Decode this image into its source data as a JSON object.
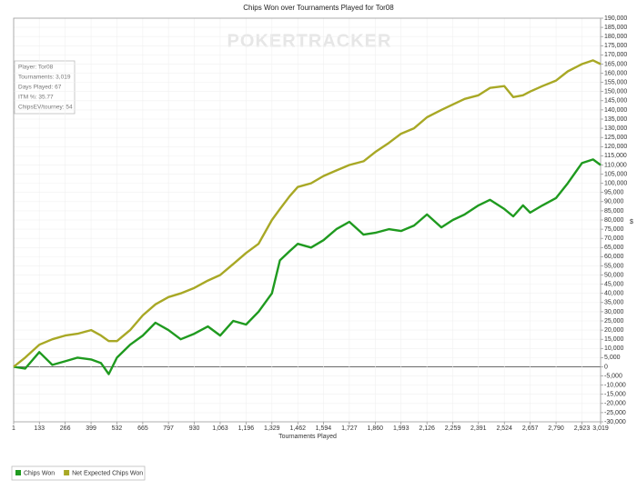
{
  "chart_data": {
    "type": "line",
    "title": "Chips Won over Tournaments Played for Tor08",
    "watermark": "POKERTRACKER",
    "x_label": "Tournaments Played",
    "y_label": "$",
    "annotations": [
      "Player: Tor08",
      "Tournaments: 3,019",
      "Days Played: 67",
      "ITM %: 35.77",
      "ChipsEV/tourney: 54"
    ],
    "x": [
      1,
      60,
      133,
      200,
      266,
      330,
      399,
      450,
      490,
      532,
      600,
      665,
      730,
      797,
      860,
      930,
      1000,
      1063,
      1130,
      1196,
      1260,
      1329,
      1370,
      1420,
      1462,
      1530,
      1594,
      1660,
      1727,
      1800,
      1860,
      1930,
      1993,
      2060,
      2126,
      2200,
      2259,
      2320,
      2391,
      2450,
      2524,
      2570,
      2620,
      2657,
      2720,
      2790,
      2850,
      2923,
      2980,
      3019
    ],
    "series": [
      {
        "name": "Chips Won",
        "color": "#1f9a1f",
        "values": [
          0,
          -1000,
          8000,
          1000,
          3000,
          5000,
          4000,
          2000,
          -4000,
          5000,
          12000,
          17000,
          24000,
          20000,
          15000,
          18000,
          22000,
          17000,
          25000,
          23000,
          30000,
          40000,
          58000,
          63000,
          67000,
          65000,
          69000,
          75000,
          79000,
          72000,
          73000,
          75000,
          74000,
          77000,
          83000,
          76000,
          80000,
          83000,
          88000,
          91000,
          86000,
          82000,
          88000,
          84000,
          88000,
          92000,
          100000,
          111000,
          113000,
          110000
        ]
      },
      {
        "name": "Net Expected Chips Won",
        "color": "#a8a825",
        "values": [
          0,
          5000,
          12000,
          15000,
          17000,
          18000,
          20000,
          17000,
          14000,
          14000,
          20000,
          28000,
          34000,
          38000,
          40000,
          43000,
          47000,
          50000,
          56000,
          62000,
          67000,
          80000,
          86000,
          93000,
          98000,
          100000,
          104000,
          107000,
          110000,
          112000,
          117000,
          122000,
          127000,
          130000,
          136000,
          140000,
          143000,
          146000,
          148000,
          152000,
          153000,
          147000,
          148000,
          150000,
          153000,
          156000,
          161000,
          165000,
          167000,
          165000
        ]
      }
    ],
    "xlim": [
      1,
      3019
    ],
    "xticks": [
      1,
      133,
      266,
      399,
      532,
      665,
      797,
      930,
      {
        "value": 1063,
        "label": "1,063"
      },
      {
        "value": 1196,
        "label": "1,196"
      },
      {
        "value": 1329,
        "label": "1,329"
      },
      {
        "value": 1462,
        "label": "1,462"
      },
      {
        "value": 1594,
        "label": "1,594"
      },
      {
        "value": 1727,
        "label": "1,727"
      },
      {
        "value": 1860,
        "label": "1,860"
      },
      {
        "value": 1993,
        "label": "1,993"
      },
      {
        "value": 2126,
        "label": "2,126"
      },
      {
        "value": 2259,
        "label": "2,259"
      },
      {
        "value": 2391,
        "label": "2,391"
      },
      {
        "value": 2524,
        "label": "2,524"
      },
      {
        "value": 2657,
        "label": "2,657"
      },
      {
        "value": 2790,
        "label": "2,790"
      },
      {
        "value": 2923,
        "label": "2,923"
      },
      {
        "value": 3019,
        "label": "3,019"
      }
    ],
    "ylim": [
      -30000,
      190000
    ],
    "yticks": [
      {
        "value": -30000,
        "label": "-30,000"
      },
      {
        "value": -25000,
        "label": "-25,000"
      },
      {
        "value": -20000,
        "label": "-20,000"
      },
      {
        "value": -15000,
        "label": "-15,000"
      },
      {
        "value": -10000,
        "label": "-10,000"
      },
      {
        "value": -5000,
        "label": "-5,000"
      },
      0,
      {
        "value": 5000,
        "label": "5,000"
      },
      {
        "value": 10000,
        "label": "10,000"
      },
      {
        "value": 15000,
        "label": "15,000"
      },
      {
        "value": 20000,
        "label": "20,000"
      },
      {
        "value": 25000,
        "label": "25,000"
      },
      {
        "value": 30000,
        "label": "30,000"
      },
      {
        "value": 35000,
        "label": "35,000"
      },
      {
        "value": 40000,
        "label": "40,000"
      },
      {
        "value": 45000,
        "label": "45,000"
      },
      {
        "value": 50000,
        "label": "50,000"
      },
      {
        "value": 55000,
        "label": "55,000"
      },
      {
        "value": 60000,
        "label": "60,000"
      },
      {
        "value": 65000,
        "label": "65,000"
      },
      {
        "value": 70000,
        "label": "70,000"
      },
      {
        "value": 75000,
        "label": "75,000"
      },
      {
        "value": 80000,
        "label": "80,000"
      },
      {
        "value": 85000,
        "label": "85,000"
      },
      {
        "value": 90000,
        "label": "90,000"
      },
      {
        "value": 95000,
        "label": "95,000"
      },
      {
        "value": 100000,
        "label": "100,000"
      },
      {
        "value": 105000,
        "label": "105,000"
      },
      {
        "value": 110000,
        "label": "110,000"
      },
      {
        "value": 115000,
        "label": "115,000"
      },
      {
        "value": 120000,
        "label": "120,000"
      },
      {
        "value": 125000,
        "label": "125,000"
      },
      {
        "value": 130000,
        "label": "130,000"
      },
      {
        "value": 135000,
        "label": "135,000"
      },
      {
        "value": 140000,
        "label": "140,000"
      },
      {
        "value": 145000,
        "label": "145,000"
      },
      {
        "value": 150000,
        "label": "150,000"
      },
      {
        "value": 155000,
        "label": "155,000"
      },
      {
        "value": 160000,
        "label": "160,000"
      },
      {
        "value": 165000,
        "label": "165,000"
      },
      {
        "value": 170000,
        "label": "170,000"
      },
      {
        "value": 175000,
        "label": "175,000"
      },
      {
        "value": 180000,
        "label": "180,000"
      },
      {
        "value": 185000,
        "label": "185,000"
      },
      {
        "value": 190000,
        "label": "190,000"
      }
    ],
    "grid": true,
    "legend": "bottom-left"
  }
}
